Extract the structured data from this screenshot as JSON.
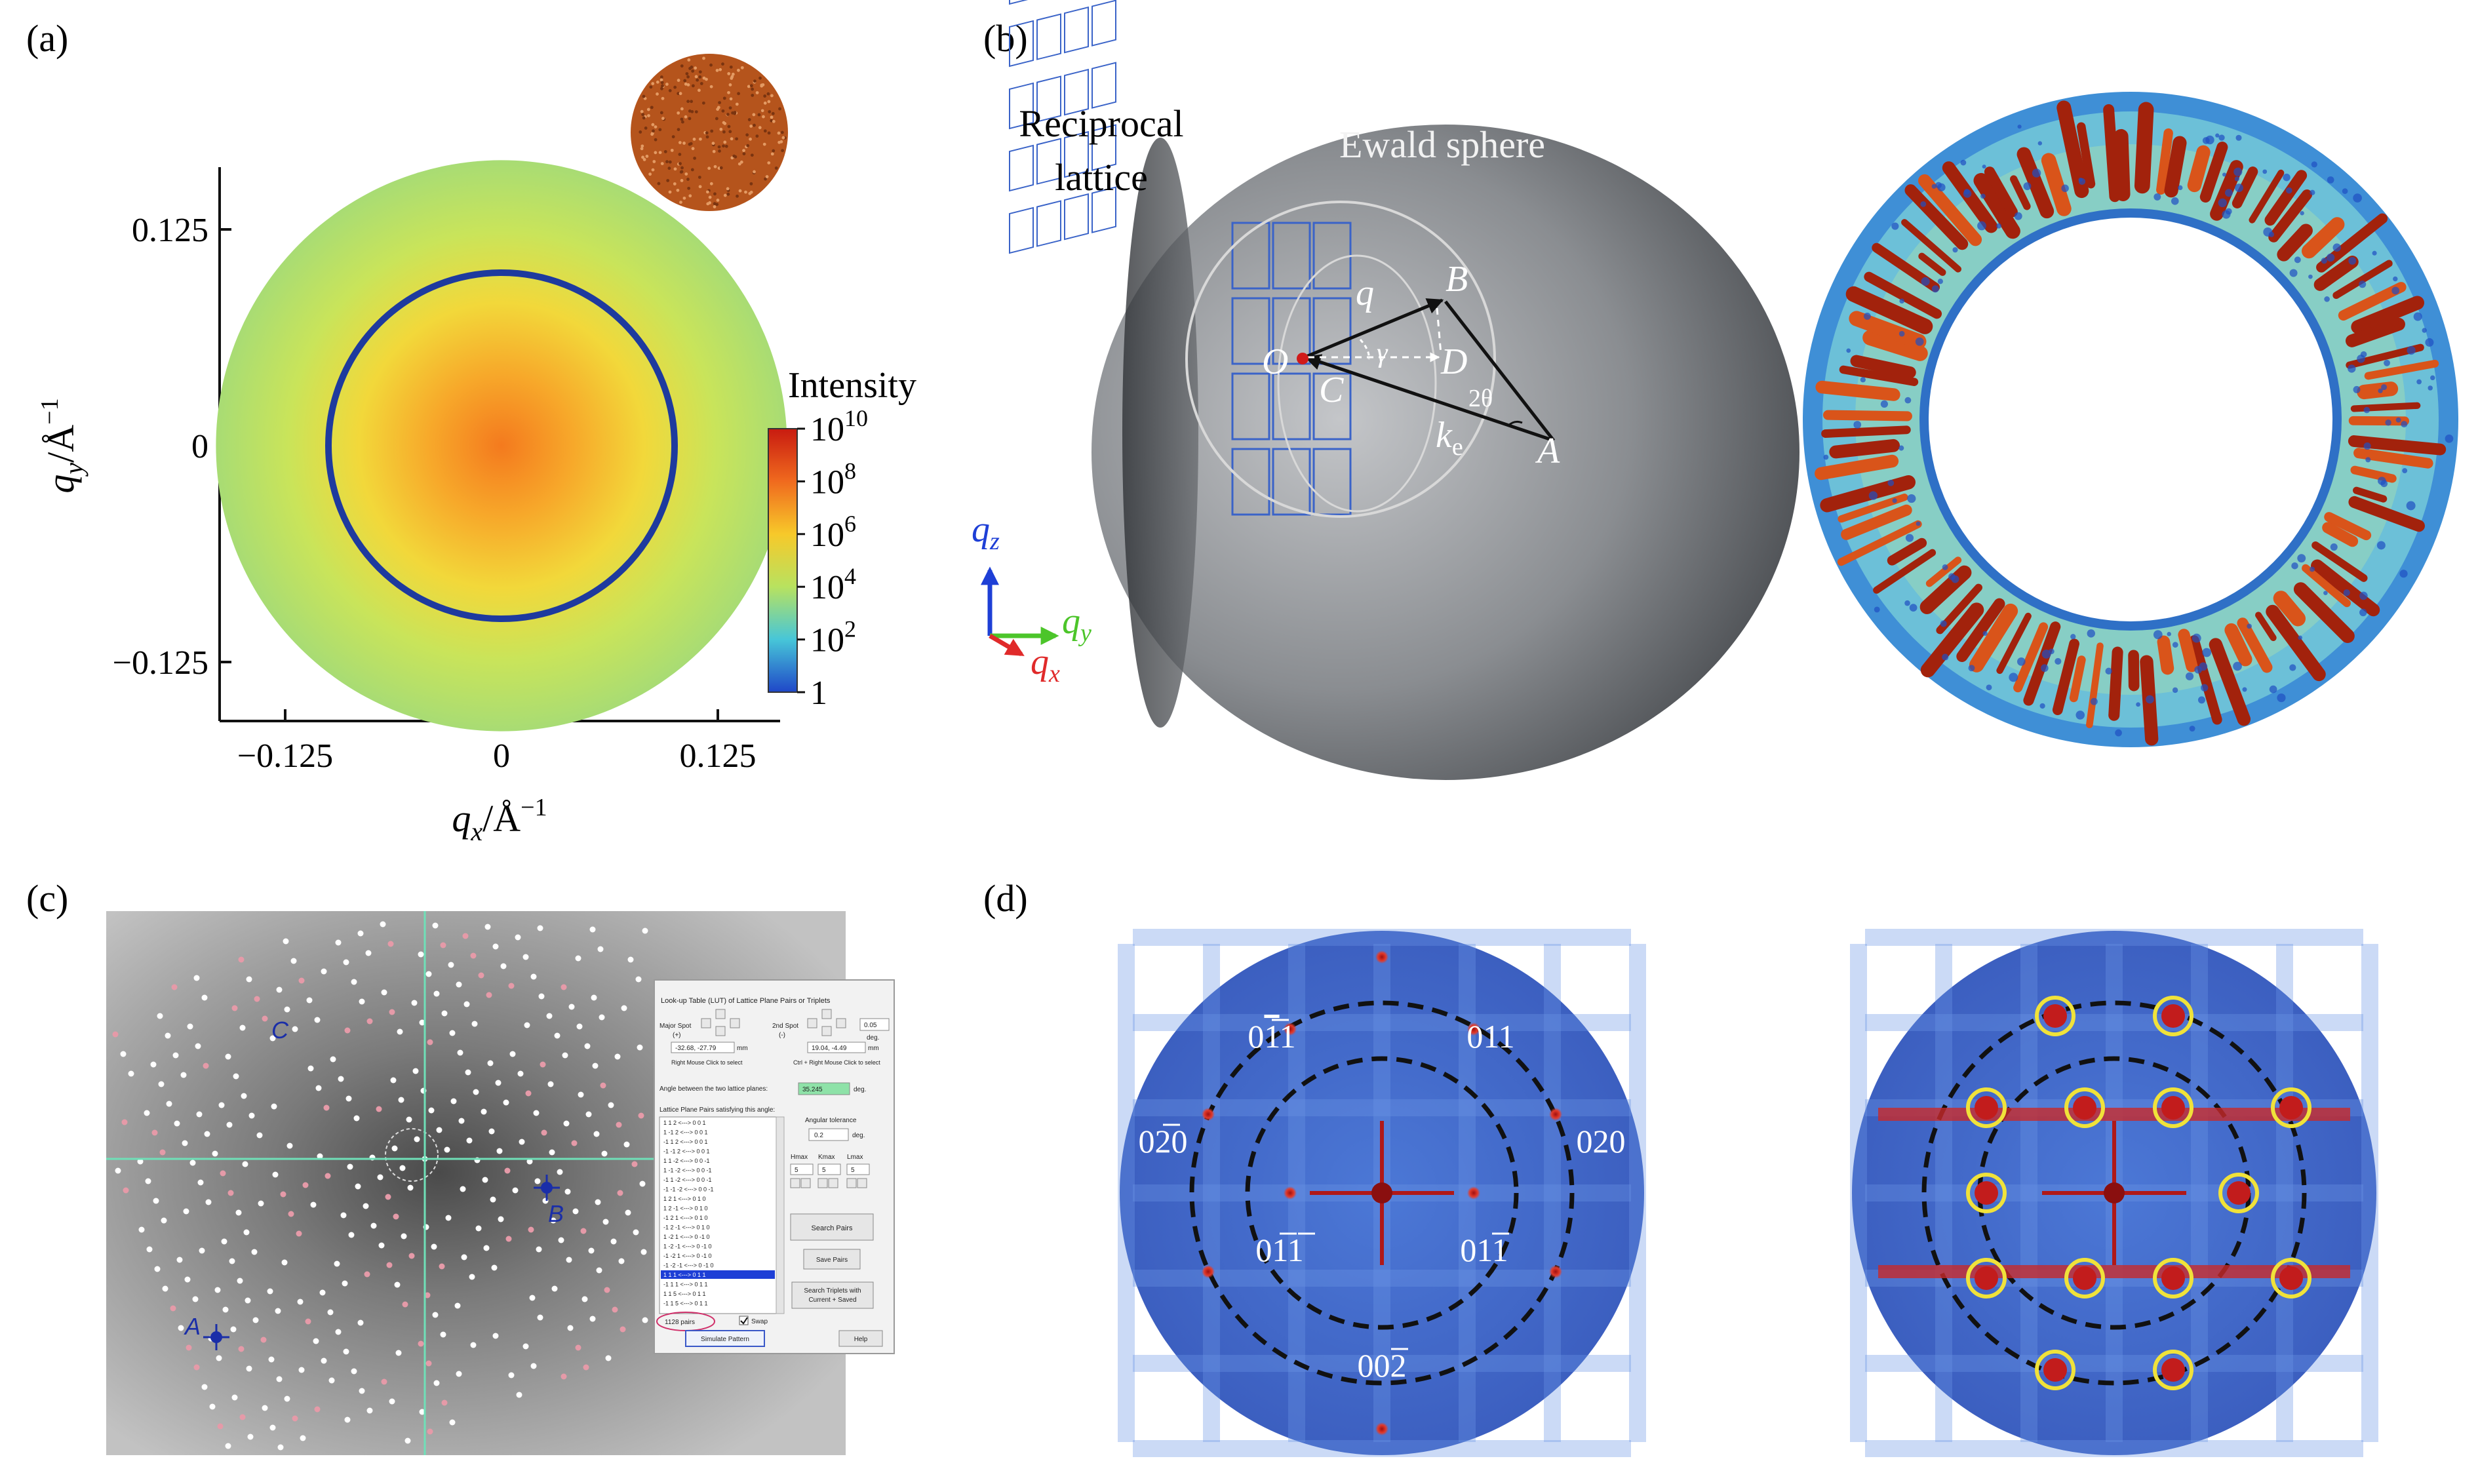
{
  "panels": {
    "a": {
      "label": "(a)",
      "xlabel_q": "q",
      "xlabel_sub": "x",
      "xlabel_unit": "/Å",
      "xlabel_exp": "−1",
      "ylabel_q": "q",
      "ylabel_sub": "y",
      "ylabel_unit": "/Å",
      "ylabel_exp": "−1",
      "colorbar": {
        "title": "Intensity",
        "ticks": [
          {
            "base": "10",
            "exp": "10"
          },
          {
            "base": "10",
            "exp": "8"
          },
          {
            "base": "10",
            "exp": "6"
          },
          {
            "base": "10",
            "exp": "4"
          },
          {
            "base": "10",
            "exp": "2"
          },
          {
            "base": "1",
            "exp": ""
          }
        ],
        "colors": [
          "#c81b10",
          "#f06a1e",
          "#f7c92a",
          "#b8e25f",
          "#47c6d8",
          "#1f47c8"
        ]
      }
    },
    "b": {
      "label": "(b)",
      "reciprocal_line1": "Reciprocal",
      "reciprocal_line2": "lattice",
      "ewald": "Ewald sphere",
      "pts": {
        "O": "O",
        "B": "B",
        "C": "C",
        "D": "D",
        "A": "A",
        "q": "q",
        "gamma": "γ",
        "two_theta": "2θ",
        "ke": "k",
        "ke_sub": "e"
      },
      "axes": {
        "qz": "q",
        "qz_sub": "z",
        "qy": "q",
        "qy_sub": "y",
        "qx": "q",
        "qx_sub": "x"
      },
      "colors": {
        "qz": "#1e3fd6",
        "qy": "#4cc52a",
        "qx": "#e02a2a"
      }
    },
    "c": {
      "label": "(c)",
      "markers": {
        "A": "A",
        "B": "B",
        "C": "C"
      },
      "dialog": {
        "title": "Look-up Table (LUT) of Lattice Plane Pairs or Triplets",
        "major_spot": "Major Spot",
        "major_sign": "(+)",
        "major_value": "-32.68, -27.79",
        "major_hint": "Right Mouse Click to select",
        "second_spot": "2nd Spot",
        "second_sign": "(-)",
        "second_value": "19.04, -4.49",
        "unit_mm": "mm",
        "second_hint": "Ctrl + Right Mouse Click to select",
        "tolerance_top": "0.05",
        "deg": "deg.",
        "angle_label": "Angle between the two lattice planes:",
        "angle_value": "35.245",
        "pairs_label": "Lattice Plane Pairs satisfying this angle:",
        "pairs": [
          "1 1 2 <---> 0 0 1",
          "1 -1 2 <---> 0 0 1",
          "-1 1 2 <---> 0 0 1",
          "-1 -1 2 <---> 0 0 1",
          "1 1 -2 <---> 0 0 -1",
          "1 -1 -2 <---> 0 0 -1",
          "-1 1 -2 <---> 0 0 -1",
          "-1 -1 -2 <---> 0 0 -1",
          "1 2 1 <---> 0 1 0",
          "1 2 -1 <---> 0 1 0",
          "-1 2 1 <---> 0 1 0",
          "-1 2 -1 <---> 0 1 0",
          "1 -2 1 <---> 0 -1 0",
          "1 -2 -1 <---> 0 -1 0",
          "-1 -2 1 <---> 0 -1 0",
          "-1 -2 -1 <---> 0 -1 0",
          "1 1 1 <---> 0 1 1",
          "-1 1 1 <---> 0 1 1",
          "1 1 5 <---> 0 1 1",
          "-1 1 5 <---> 0 1 1"
        ],
        "selected_index": 16,
        "pairs_count": "1128 pairs",
        "swap": "Swap",
        "simulate": "Simulate Pattern",
        "angular_tolerance": "Angular tolerance",
        "tolerance_value": "0.2",
        "hmax": "Hmax",
        "kmax": "Kmax",
        "lmax": "Lmax",
        "hmax_value": "5",
        "kmax_value": "5",
        "lmax_value": "5",
        "search_pairs": "Search Pairs",
        "save_pairs": "Save Pairs",
        "search_triplets_1": "Search Triplets with",
        "search_triplets_2": "Current + Saved",
        "help": "Help"
      }
    },
    "d": {
      "label": "(d)",
      "spots": {
        "top": {
          "a": "00",
          "b": "2"
        },
        "ul": {
          "a": "0",
          "b": "1",
          "c": "1"
        },
        "ur": {
          "a": "011"
        },
        "left": {
          "a": "0",
          "b": "2",
          "c": "0"
        },
        "right": {
          "a": "020"
        },
        "ll": {
          "a": "0",
          "b": "1",
          "c": "1"
        },
        "lr": {
          "a": "01",
          "b": "1"
        },
        "bottom": {
          "a": "00",
          "b": "2"
        }
      }
    }
  },
  "chart_data": {
    "type": "heatmap",
    "x_ticks": [
      "−0.125",
      "0",
      "0.125"
    ],
    "y_ticks": [
      "0.125",
      "0",
      "−0.125"
    ],
    "x_tick_values": [
      -0.125,
      0,
      0.125
    ],
    "y_tick_values": [
      0.125,
      0,
      -0.125
    ],
    "xlim": [
      -0.18,
      0.18
    ],
    "ylim": [
      -0.18,
      0.18
    ],
    "ring_radius": 0.1,
    "disk_radius": 0.165,
    "colorbar_range": [
      1,
      10000000000
    ],
    "colorbar_scale": "log",
    "legend_position": "right"
  }
}
